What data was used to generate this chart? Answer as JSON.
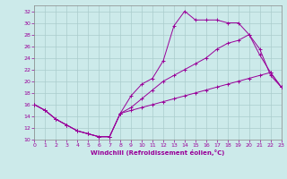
{
  "xlabel": "Windchill (Refroidissement éolien,°C)",
  "bg_color": "#cceaea",
  "line_color": "#990099",
  "grid_color": "#aacccc",
  "xlim": [
    0,
    23
  ],
  "ylim": [
    10,
    33
  ],
  "yticks": [
    10,
    12,
    14,
    16,
    18,
    20,
    22,
    24,
    26,
    28,
    30,
    32
  ],
  "xticks": [
    0,
    1,
    2,
    3,
    4,
    5,
    6,
    7,
    8,
    9,
    10,
    11,
    12,
    13,
    14,
    15,
    16,
    17,
    18,
    19,
    20,
    21,
    22,
    23
  ],
  "series": [
    {
      "x": [
        0,
        1,
        2,
        3,
        4,
        5,
        6,
        7,
        8,
        9,
        10,
        11,
        12,
        13,
        14,
        15,
        16,
        17,
        18,
        19,
        20,
        21,
        22,
        23
      ],
      "y": [
        16,
        15,
        13.5,
        12.5,
        11.5,
        11,
        10.5,
        10.5,
        14.5,
        17.5,
        19.5,
        20.5,
        23.5,
        29.5,
        32,
        30.5,
        30.5,
        30.5,
        30,
        30,
        28,
        25.5,
        21,
        19
      ]
    },
    {
      "x": [
        0,
        1,
        2,
        3,
        4,
        5,
        6,
        7,
        8,
        9,
        10,
        11,
        12,
        13,
        14,
        15,
        16,
        17,
        18,
        19,
        20,
        21,
        22,
        23
      ],
      "y": [
        16,
        15,
        13.5,
        12.5,
        11.5,
        11,
        10.5,
        10.5,
        14.5,
        15.5,
        17,
        18.5,
        20,
        21,
        22,
        23,
        24,
        25.5,
        26.5,
        27,
        28,
        24.5,
        21.5,
        19
      ]
    },
    {
      "x": [
        0,
        1,
        2,
        3,
        4,
        5,
        6,
        7,
        8,
        9,
        10,
        11,
        12,
        13,
        14,
        15,
        16,
        17,
        18,
        19,
        20,
        21,
        22,
        23
      ],
      "y": [
        16,
        15,
        13.5,
        12.5,
        11.5,
        11,
        10.5,
        10.5,
        14.5,
        15,
        15.5,
        16,
        16.5,
        17,
        17.5,
        18,
        18.5,
        19,
        19.5,
        20,
        20.5,
        21,
        21.5,
        19
      ]
    }
  ]
}
